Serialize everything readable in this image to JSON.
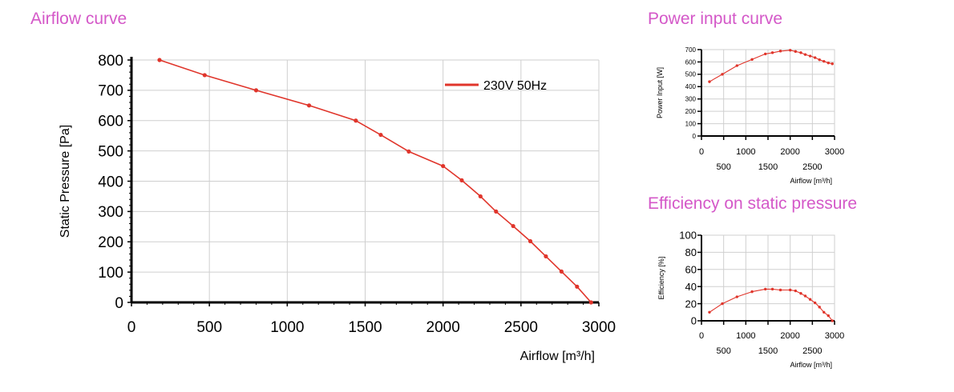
{
  "titles": {
    "airflow": "Airflow curve",
    "power": "Power input curve",
    "efficiency": "Efficiency on static pressure"
  },
  "colors": {
    "title": "#d458c8",
    "series": "#e0352b",
    "grid": "#cfcfcf"
  },
  "chart_data": [
    {
      "type": "line",
      "xlabel": "Airflow [m³/h]",
      "ylabel": "Static Pressure [Pa]",
      "xlim": [
        0,
        3000
      ],
      "ylim": [
        0,
        800
      ],
      "xticks": [
        0,
        500,
        1000,
        1500,
        2000,
        2500,
        3000
      ],
      "yticks": [
        0,
        100,
        200,
        300,
        400,
        500,
        600,
        700,
        800
      ],
      "grid": true,
      "legend": "top-right",
      "series": [
        {
          "name": "230V 50Hz",
          "x": [
            180,
            470,
            800,
            1140,
            1440,
            1600,
            1780,
            2000,
            2120,
            2240,
            2340,
            2450,
            2560,
            2660,
            2760,
            2860,
            2950
          ],
          "y": [
            800,
            750,
            700,
            650,
            600,
            553,
            498,
            450,
            403,
            350,
            300,
            252,
            202,
            152,
            102,
            52,
            0
          ]
        }
      ]
    },
    {
      "type": "line",
      "xlabel": "Airflow [m³/h]",
      "ylabel": "Power Input [W]",
      "xlim": [
        0,
        3000
      ],
      "ylim": [
        0,
        700
      ],
      "xticks": [
        0,
        500,
        1000,
        1500,
        2000,
        2500,
        3000
      ],
      "yticks": [
        0,
        100,
        200,
        300,
        400,
        500,
        600,
        700
      ],
      "grid": true,
      "series": [
        {
          "x": [
            180,
            470,
            800,
            1140,
            1440,
            1600,
            1780,
            2000,
            2120,
            2240,
            2340,
            2450,
            2560,
            2660,
            2760,
            2860,
            2950
          ],
          "y": [
            440,
            500,
            570,
            620,
            665,
            675,
            688,
            695,
            685,
            675,
            660,
            648,
            635,
            618,
            605,
            592,
            585
          ]
        }
      ]
    },
    {
      "type": "line",
      "xlabel": "Airflow [m³/h]",
      "ylabel": "Efficiency [%]",
      "xlim": [
        0,
        3000
      ],
      "ylim": [
        0,
        100
      ],
      "xticks": [
        0,
        500,
        1000,
        1500,
        2000,
        2500,
        3000
      ],
      "yticks": [
        0,
        20,
        40,
        60,
        80,
        100
      ],
      "grid": true,
      "series": [
        {
          "x": [
            180,
            470,
            800,
            1140,
            1440,
            1600,
            1780,
            2000,
            2120,
            2240,
            2340,
            2450,
            2560,
            2660,
            2760,
            2860,
            2950
          ],
          "y": [
            10,
            20,
            28,
            34,
            37,
            37,
            36,
            36,
            35,
            32,
            29,
            25,
            21,
            16,
            10,
            6,
            0
          ]
        }
      ]
    }
  ]
}
